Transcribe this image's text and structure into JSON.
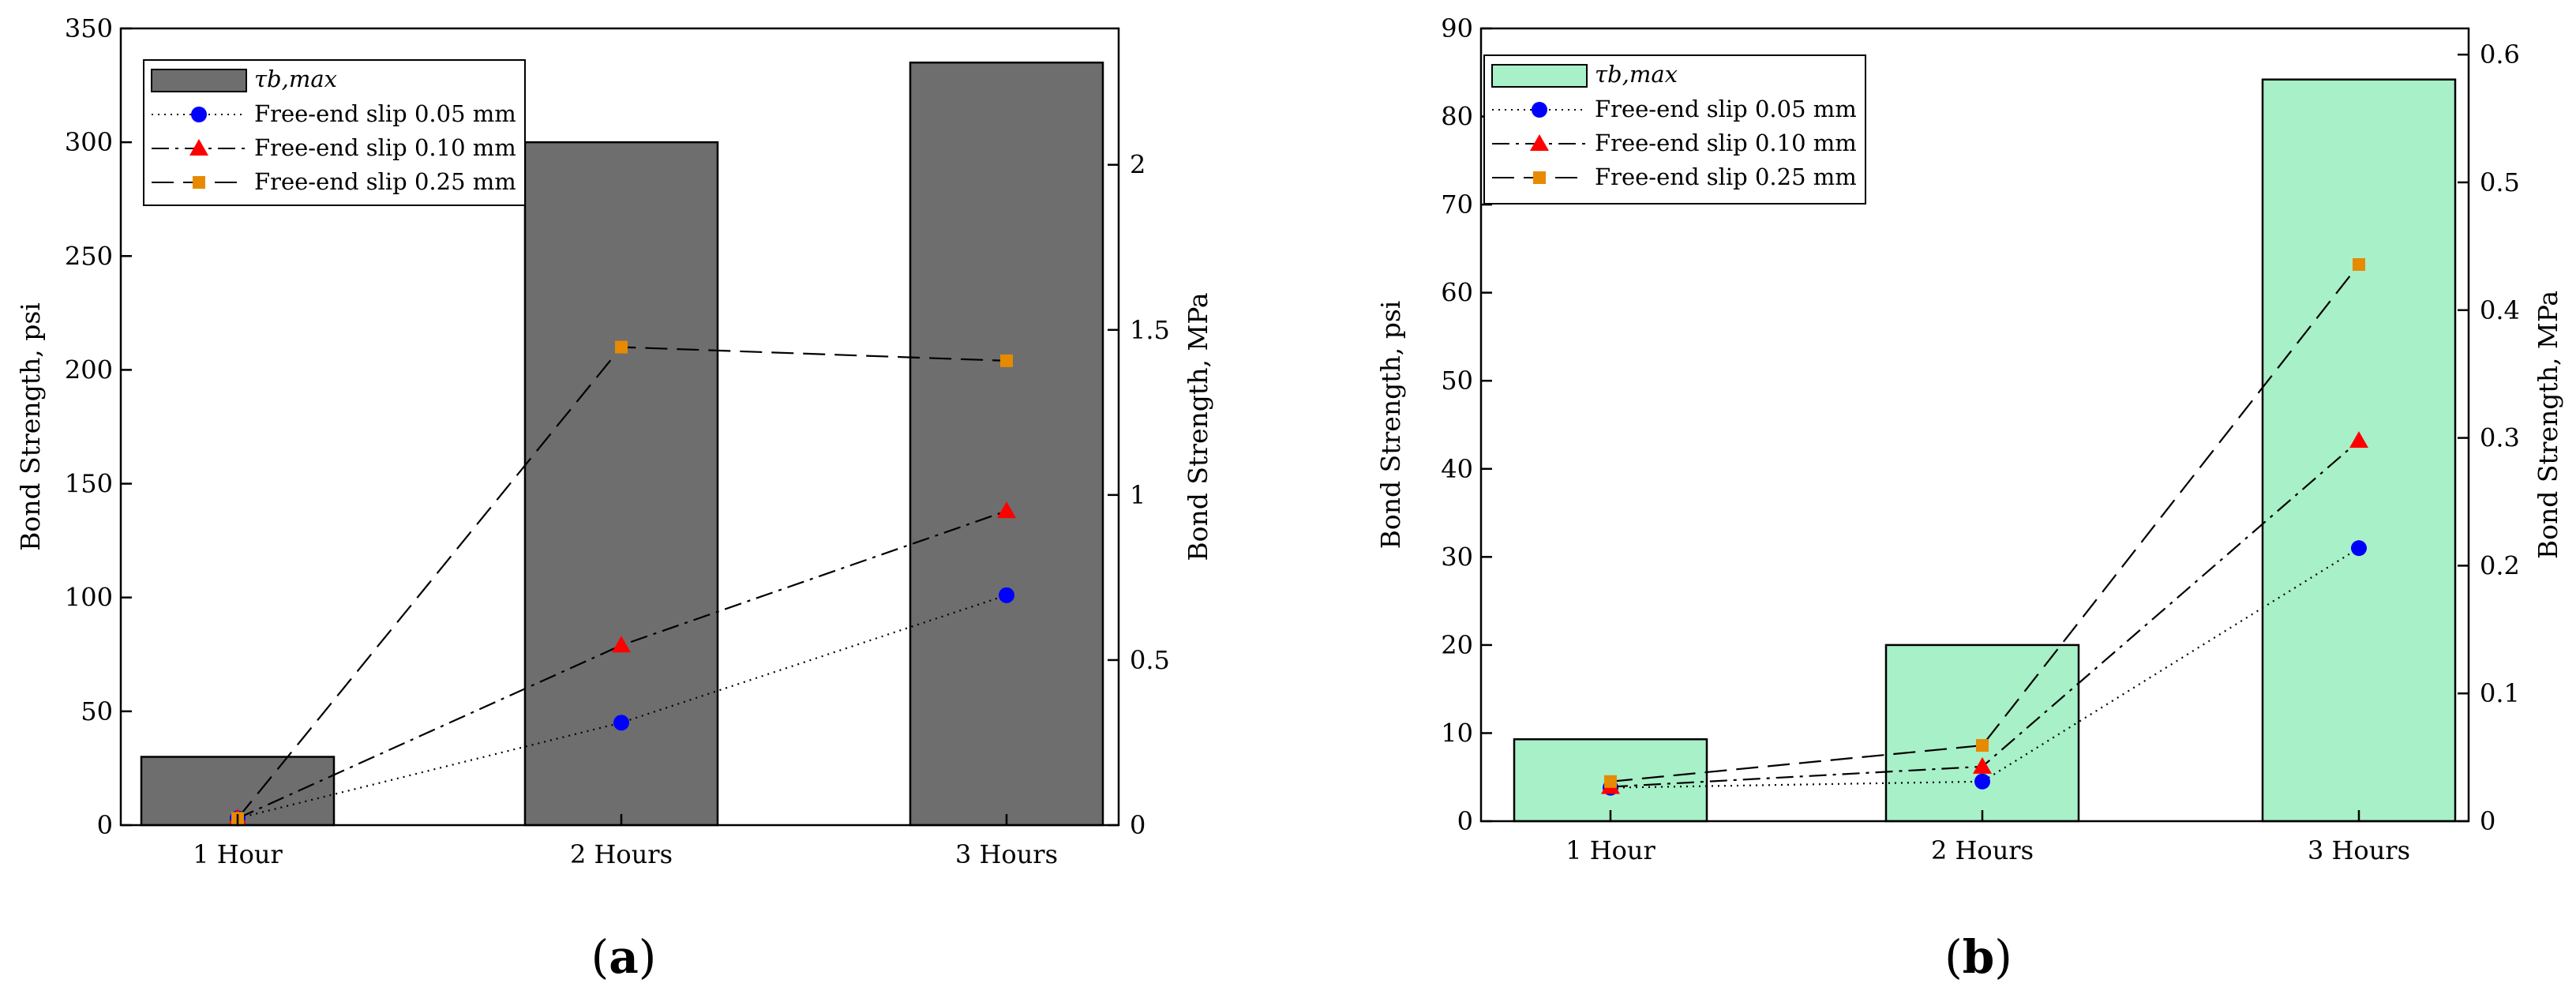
{
  "chart_data": [
    {
      "type": "bar",
      "panel_label_open": "(",
      "panel_label_letter": "a",
      "panel_label_close": ")",
      "categories": [
        "1 Hour",
        "2 Hours",
        "3 Hours"
      ],
      "bar_color": "#6e6e6e",
      "ylabel": "Bond Strength, psi",
      "ylabel_right": "Bond Strength, MPa",
      "ylim": [
        0,
        350
      ],
      "yticks": [
        "0",
        "50",
        "100",
        "150",
        "200",
        "250",
        "300",
        "350"
      ],
      "ylim_right": [
        0,
        2.413
      ],
      "yticks_right": [
        "0",
        "0.5",
        "1",
        "1.5",
        "2"
      ],
      "legend_position": "top-left",
      "series": [
        {
          "name": "τb,max",
          "kind": "bar",
          "values": [
            30,
            300,
            335
          ]
        },
        {
          "name": "Free-end slip 0.05 mm",
          "kind": "line",
          "line_style": "dotted",
          "marker": "circle",
          "color": "#0000ff",
          "values": [
            3,
            45,
            101
          ]
        },
        {
          "name": "Free-end slip 0.10 mm",
          "kind": "line",
          "line_style": "dashdot",
          "marker": "triangle",
          "color": "#ff0000",
          "values": [
            3,
            79,
            138
          ]
        },
        {
          "name": "Free-end slip 0.25 mm",
          "kind": "line",
          "line_style": "dashed",
          "marker": "square",
          "color": "#e68a00",
          "values": [
            3,
            210,
            204
          ]
        }
      ]
    },
    {
      "type": "bar",
      "panel_label_open": "(",
      "panel_label_letter": "b",
      "panel_label_close": ")",
      "categories": [
        "1 Hour",
        "2 Hours",
        "3 Hours"
      ],
      "bar_color": "#a8f0c8",
      "ylabel": "Bond Strength, psi",
      "ylabel_right": "Bond Strength, MPa",
      "ylim": [
        0,
        90
      ],
      "yticks": [
        "0",
        "10",
        "20",
        "30",
        "40",
        "50",
        "60",
        "70",
        "80",
        "90"
      ],
      "ylim_right": [
        0,
        0.6205
      ],
      "yticks_right": [
        "0",
        "0.1",
        "0.2",
        "0.3",
        "0.4",
        "0.5",
        "0.6"
      ],
      "legend_position": "top-left",
      "series": [
        {
          "name": "τb,max",
          "kind": "bar",
          "values": [
            9.3,
            20,
            84.2
          ]
        },
        {
          "name": "Free-end slip 0.05 mm",
          "kind": "line",
          "line_style": "dotted",
          "marker": "circle",
          "color": "#0000ff",
          "values": [
            3.8,
            4.5,
            31
          ]
        },
        {
          "name": "Free-end slip 0.10 mm",
          "kind": "line",
          "line_style": "dashdot",
          "marker": "triangle",
          "color": "#ff0000",
          "values": [
            3.9,
            6.2,
            43.2
          ]
        },
        {
          "name": "Free-end slip 0.25 mm",
          "kind": "line",
          "line_style": "dashed",
          "marker": "square",
          "color": "#e68a00",
          "values": [
            4.5,
            8.6,
            63.2
          ]
        }
      ]
    }
  ]
}
